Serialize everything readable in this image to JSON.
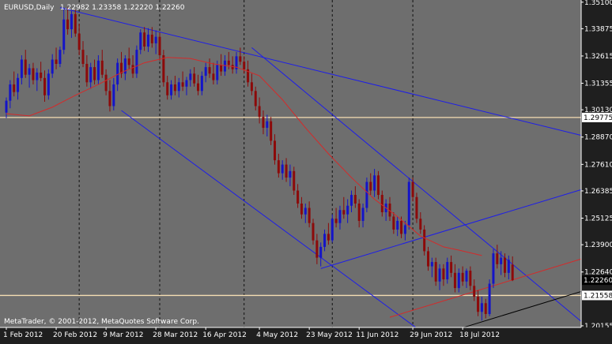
{
  "header": {
    "symbol_line": "EURUSD,Daily",
    "ohlc_line": "1.22982 1.23358 1.22220 1.22260"
  },
  "watermark": "MetaTrader, © 2001-2012, MetaQuotes Software Corp.",
  "colors": {
    "plot_bg": "#6e6e6e",
    "bull": "#1414c8",
    "bear": "#8c0a0a",
    "ma": "#d42a2a",
    "trendline": "#1e1ee8",
    "hline": "#f5deb3",
    "text": "#ffffff",
    "axis_bg": "#1f1f1f"
  },
  "chart_data": {
    "type": "candlestick",
    "instrument": "EURUSD",
    "timeframe": "Daily",
    "ylim": [
      1.2008,
      1.352
    ],
    "y_ticks": [
      "1.35100",
      "1.33875",
      "1.32615",
      "1.31355",
      "1.30130",
      "1.28870",
      "1.27610",
      "1.26385",
      "1.25125",
      "1.23900",
      "1.22640",
      "1.20155"
    ],
    "x_ticks": [
      {
        "label": "1 Feb 2012",
        "i": 0
      },
      {
        "label": "20 Feb 2012",
        "i": 13
      },
      {
        "label": "9 Mar 2012",
        "i": 26
      },
      {
        "label": "28 Mar 2012",
        "i": 39
      },
      {
        "label": "16 Apr 2012",
        "i": 52
      },
      {
        "label": "4 May 2012",
        "i": 66
      },
      {
        "label": "23 May 2012",
        "i": 79
      },
      {
        "label": "11 Jun 2012",
        "i": 92
      },
      {
        "label": "29 Jun 2012",
        "i": 106
      },
      {
        "label": "18 Jul 2012",
        "i": 119
      }
    ],
    "price_labels": [
      {
        "value": 1.29775,
        "text": "1.29775"
      },
      {
        "value": 1.2226,
        "text": "1.22260"
      },
      {
        "value": 1.21558,
        "text": "1.21558"
      }
    ],
    "horizontal_lines": [
      1.29775,
      1.21558
    ],
    "moving_average": [
      [
        0,
        1.2995
      ],
      [
        6,
        1.2985
      ],
      [
        12,
        1.3025
      ],
      [
        18,
        1.308
      ],
      [
        24,
        1.313
      ],
      [
        30,
        1.3185
      ],
      [
        36,
        1.323
      ],
      [
        42,
        1.3255
      ],
      [
        48,
        1.325
      ],
      [
        54,
        1.3225
      ],
      [
        60,
        1.321
      ],
      [
        66,
        1.317
      ],
      [
        72,
        1.306
      ],
      [
        78,
        1.293
      ],
      [
        84,
        1.281
      ],
      [
        90,
        1.27
      ],
      [
        96,
        1.26
      ],
      [
        102,
        1.252
      ],
      [
        108,
        1.243
      ],
      [
        114,
        1.238
      ],
      [
        118,
        1.2365
      ],
      [
        124,
        1.234
      ]
    ],
    "trendlines": [
      {
        "from": [
          14,
          1.3485
        ],
        "to": [
          151,
          1.289
        ],
        "color": "trendline"
      },
      {
        "from": [
          30,
          1.301
        ],
        "to": [
          107,
          1.2005
        ],
        "color": "trendline"
      },
      {
        "from": [
          64,
          1.33
        ],
        "to": [
          151,
          1.202
        ],
        "color": "trendline"
      },
      {
        "from": [
          82,
          1.228
        ],
        "to": [
          151,
          1.265
        ],
        "color": "trendline"
      },
      {
        "from": [
          100,
          1.2055
        ],
        "to": [
          151,
          1.233
        ],
        "color": "ma"
      },
      {
        "from": [
          115,
          1.1985
        ],
        "to": [
          151,
          1.218
        ],
        "color": "black"
      }
    ],
    "candles": [
      [
        1.3,
        1.307,
        1.2975,
        1.3055
      ],
      [
        1.3055,
        1.315,
        1.302,
        1.313
      ],
      [
        1.313,
        1.319,
        1.3075,
        1.3095
      ],
      [
        1.3095,
        1.318,
        1.306,
        1.316
      ],
      [
        1.316,
        1.3265,
        1.313,
        1.3245
      ],
      [
        1.3245,
        1.329,
        1.316,
        1.3175
      ],
      [
        1.3175,
        1.3225,
        1.3115,
        1.3205
      ],
      [
        1.3205,
        1.323,
        1.313,
        1.315
      ],
      [
        1.315,
        1.3205,
        1.31,
        1.3185
      ],
      [
        1.3185,
        1.3235,
        1.3145,
        1.316
      ],
      [
        1.316,
        1.3195,
        1.305,
        1.308
      ],
      [
        1.308,
        1.32,
        1.306,
        1.318
      ],
      [
        1.318,
        1.327,
        1.316,
        1.3245
      ],
      [
        1.3245,
        1.33,
        1.32,
        1.3225
      ],
      [
        1.3225,
        1.3305,
        1.321,
        1.329
      ],
      [
        1.329,
        1.3485,
        1.327,
        1.343
      ],
      [
        1.343,
        1.3485,
        1.336,
        1.3385
      ],
      [
        1.3385,
        1.347,
        1.3345,
        1.3455
      ],
      [
        1.3455,
        1.3475,
        1.335,
        1.3365
      ],
      [
        1.3365,
        1.341,
        1.3265,
        1.329
      ],
      [
        1.329,
        1.333,
        1.321,
        1.3225
      ],
      [
        1.3225,
        1.3265,
        1.312,
        1.314
      ],
      [
        1.314,
        1.323,
        1.311,
        1.321
      ],
      [
        1.321,
        1.3245,
        1.313,
        1.315
      ],
      [
        1.315,
        1.3265,
        1.313,
        1.324
      ],
      [
        1.324,
        1.329,
        1.316,
        1.3175
      ],
      [
        1.3175,
        1.32,
        1.308,
        1.31
      ],
      [
        1.31,
        1.315,
        1.3005,
        1.303
      ],
      [
        1.303,
        1.316,
        1.301,
        1.313
      ],
      [
        1.313,
        1.325,
        1.31,
        1.323
      ],
      [
        1.323,
        1.328,
        1.316,
        1.318
      ],
      [
        1.318,
        1.3265,
        1.315,
        1.325
      ],
      [
        1.325,
        1.33,
        1.32,
        1.322
      ],
      [
        1.322,
        1.3265,
        1.316,
        1.318
      ],
      [
        1.318,
        1.331,
        1.316,
        1.329
      ],
      [
        1.329,
        1.3385,
        1.327,
        1.337
      ],
      [
        1.337,
        1.3395,
        1.3285,
        1.3305
      ],
      [
        1.3305,
        1.339,
        1.328,
        1.336
      ],
      [
        1.336,
        1.3395,
        1.33,
        1.332
      ],
      [
        1.332,
        1.338,
        1.327,
        1.335
      ],
      [
        1.335,
        1.337,
        1.324,
        1.3265
      ],
      [
        1.3265,
        1.329,
        1.312,
        1.314
      ],
      [
        1.314,
        1.317,
        1.306,
        1.308
      ],
      [
        1.308,
        1.315,
        1.306,
        1.313
      ],
      [
        1.313,
        1.317,
        1.308,
        1.31
      ],
      [
        1.31,
        1.316,
        1.307,
        1.314
      ],
      [
        1.314,
        1.319,
        1.31,
        1.312
      ],
      [
        1.312,
        1.3165,
        1.308,
        1.315
      ],
      [
        1.315,
        1.32,
        1.312,
        1.318
      ],
      [
        1.318,
        1.321,
        1.312,
        1.3135
      ],
      [
        1.3135,
        1.3175,
        1.308,
        1.31
      ],
      [
        1.31,
        1.319,
        1.308,
        1.317
      ],
      [
        1.317,
        1.323,
        1.314,
        1.321
      ],
      [
        1.321,
        1.325,
        1.316,
        1.318
      ],
      [
        1.318,
        1.323,
        1.313,
        1.315
      ],
      [
        1.315,
        1.324,
        1.313,
        1.322
      ],
      [
        1.322,
        1.327,
        1.317,
        1.319
      ],
      [
        1.319,
        1.3265,
        1.317,
        1.324
      ],
      [
        1.324,
        1.328,
        1.32,
        1.322
      ],
      [
        1.322,
        1.326,
        1.318,
        1.32
      ],
      [
        1.32,
        1.328,
        1.318,
        1.326
      ],
      [
        1.326,
        1.33,
        1.322,
        1.3235
      ],
      [
        1.3235,
        1.326,
        1.318,
        1.32
      ],
      [
        1.32,
        1.324,
        1.312,
        1.314
      ],
      [
        1.314,
        1.318,
        1.308,
        1.31
      ],
      [
        1.31,
        1.312,
        1.301,
        1.303
      ],
      [
        1.303,
        1.307,
        1.295,
        1.298
      ],
      [
        1.298,
        1.301,
        1.29,
        1.293
      ],
      [
        1.293,
        1.299,
        1.289,
        1.296
      ],
      [
        1.296,
        1.298,
        1.285,
        1.287
      ],
      [
        1.287,
        1.29,
        1.276,
        1.278
      ],
      [
        1.278,
        1.281,
        1.27,
        1.272
      ],
      [
        1.272,
        1.278,
        1.269,
        1.276
      ],
      [
        1.276,
        1.279,
        1.268,
        1.27
      ],
      [
        1.27,
        1.276,
        1.266,
        1.273
      ],
      [
        1.273,
        1.275,
        1.262,
        1.264
      ],
      [
        1.264,
        1.267,
        1.256,
        1.258
      ],
      [
        1.258,
        1.261,
        1.251,
        1.253
      ],
      [
        1.253,
        1.258,
        1.249,
        1.256
      ],
      [
        1.256,
        1.259,
        1.247,
        1.249
      ],
      [
        1.249,
        1.251,
        1.239,
        1.241
      ],
      [
        1.241,
        1.244,
        1.23,
        1.233
      ],
      [
        1.233,
        1.24,
        1.229,
        1.238
      ],
      [
        1.238,
        1.246,
        1.236,
        1.244
      ],
      [
        1.244,
        1.249,
        1.239,
        1.241
      ],
      [
        1.241,
        1.253,
        1.24,
        1.251
      ],
      [
        1.251,
        1.256,
        1.247,
        1.249
      ],
      [
        1.249,
        1.257,
        1.246,
        1.255
      ],
      [
        1.255,
        1.261,
        1.251,
        1.253
      ],
      [
        1.253,
        1.26,
        1.249,
        1.257
      ],
      [
        1.257,
        1.264,
        1.254,
        1.262
      ],
      [
        1.262,
        1.266,
        1.256,
        1.258
      ],
      [
        1.258,
        1.26,
        1.247,
        1.25
      ],
      [
        1.25,
        1.258,
        1.247,
        1.256
      ],
      [
        1.256,
        1.27,
        1.254,
        1.268
      ],
      [
        1.268,
        1.272,
        1.262,
        1.264
      ],
      [
        1.264,
        1.274,
        1.261,
        1.271
      ],
      [
        1.271,
        1.273,
        1.26,
        1.262
      ],
      [
        1.262,
        1.264,
        1.252,
        1.254
      ],
      [
        1.254,
        1.26,
        1.25,
        1.258
      ],
      [
        1.258,
        1.261,
        1.25,
        1.252
      ],
      [
        1.252,
        1.254,
        1.244,
        1.246
      ],
      [
        1.246,
        1.252,
        1.243,
        1.25
      ],
      [
        1.25,
        1.252,
        1.242,
        1.244
      ],
      [
        1.244,
        1.25,
        1.241,
        1.248
      ],
      [
        1.248,
        1.27,
        1.246,
        1.268
      ],
      [
        1.268,
        1.27,
        1.259,
        1.261
      ],
      [
        1.261,
        1.263,
        1.249,
        1.251
      ],
      [
        1.251,
        1.254,
        1.244,
        1.246
      ],
      [
        1.246,
        1.248,
        1.234,
        1.236
      ],
      [
        1.236,
        1.238,
        1.227,
        1.229
      ],
      [
        1.229,
        1.233,
        1.224,
        1.231
      ],
      [
        1.231,
        1.233,
        1.22,
        1.222
      ],
      [
        1.222,
        1.23,
        1.218,
        1.228
      ],
      [
        1.228,
        1.23,
        1.22,
        1.223
      ],
      [
        1.223,
        1.233,
        1.221,
        1.231
      ],
      [
        1.231,
        1.234,
        1.224,
        1.226
      ],
      [
        1.226,
        1.23,
        1.217,
        1.219
      ],
      [
        1.219,
        1.228,
        1.217,
        1.226
      ],
      [
        1.226,
        1.229,
        1.22,
        1.222
      ],
      [
        1.222,
        1.228,
        1.219,
        1.227
      ],
      [
        1.227,
        1.229,
        1.218,
        1.22
      ],
      [
        1.22,
        1.223,
        1.213,
        1.215
      ],
      [
        1.215,
        1.218,
        1.206,
        1.208
      ],
      [
        1.208,
        1.215,
        1.204,
        1.212
      ],
      [
        1.212,
        1.214,
        1.205,
        1.207
      ],
      [
        1.207,
        1.223,
        1.206,
        1.221
      ],
      [
        1.221,
        1.237,
        1.219,
        1.235
      ],
      [
        1.235,
        1.239,
        1.228,
        1.23
      ],
      [
        1.23,
        1.236,
        1.225,
        1.233
      ],
      [
        1.233,
        1.235,
        1.224,
        1.226
      ],
      [
        1.226,
        1.234,
        1.223,
        1.232
      ],
      [
        1.2298,
        1.2336,
        1.2222,
        1.2226
      ]
    ]
  }
}
